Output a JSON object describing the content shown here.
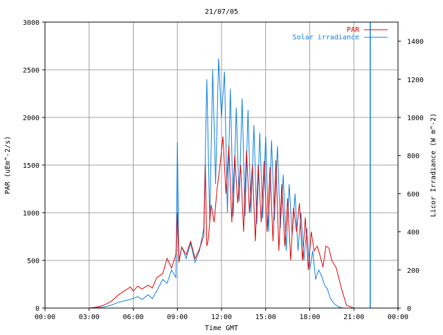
{
  "chart_data": {
    "type": "line",
    "title": "21/07/05",
    "xlabel": "Time GMT",
    "ylabel_left": "PAR (uEm^-2/s)",
    "ylabel_right": "Licor Irradiance (W m^-2)",
    "xlim_hours": [
      0,
      24
    ],
    "x_ticks": [
      "00:00",
      "03:00",
      "06:00",
      "09:00",
      "12:00",
      "15:00",
      "18:00",
      "21:00",
      "00:00"
    ],
    "ylim_left": [
      0,
      3000
    ],
    "y_ticks_left": [
      "0",
      "500",
      "1000",
      "1500",
      "2000",
      "2500",
      "3000"
    ],
    "ylim_right": [
      0,
      1500
    ],
    "y_ticks_right": [
      "0",
      "200",
      "400",
      "600",
      "800",
      "1000",
      "1200",
      "1400"
    ],
    "grid": true,
    "legend_position": "top-right",
    "series": [
      {
        "name": "PAR",
        "axis": "left",
        "color": "#e00000",
        "x": [
          0,
          3,
          3.5,
          4,
          4.5,
          5,
          5.5,
          5.8,
          6,
          6.3,
          6.6,
          7,
          7.3,
          7.6,
          8,
          8.3,
          8.6,
          8.9,
          9.0,
          9.1,
          9.3,
          9.6,
          9.9,
          10.2,
          10.5,
          10.8,
          10.9,
          11.0,
          11.1,
          11.3,
          11.5,
          11.7,
          11.9,
          12.1,
          12.3,
          12.5,
          12.7,
          12.9,
          13.1,
          13.3,
          13.5,
          13.7,
          13.9,
          14.1,
          14.3,
          14.5,
          14.7,
          14.9,
          15.1,
          15.3,
          15.5,
          15.7,
          15.9,
          16.1,
          16.3,
          16.5,
          16.7,
          16.9,
          17.1,
          17.3,
          17.5,
          17.7,
          17.9,
          18.1,
          18.3,
          18.5,
          18.7,
          18.9,
          19.1,
          19.3,
          19.5,
          19.8,
          20.0,
          20.2,
          20.5,
          21,
          24
        ],
        "y": [
          0,
          0,
          10,
          30,
          70,
          140,
          190,
          220,
          180,
          230,
          200,
          240,
          210,
          320,
          360,
          520,
          420,
          560,
          1000,
          480,
          640,
          560,
          700,
          520,
          620,
          760,
          1500,
          650,
          720,
          1080,
          900,
          1250,
          1500,
          1800,
          1200,
          1700,
          900,
          1600,
          1100,
          1500,
          800,
          1650,
          1000,
          1500,
          700,
          1500,
          900,
          1540,
          800,
          1480,
          700,
          1550,
          600,
          1300,
          650,
          1150,
          500,
          1050,
          800,
          1100,
          500,
          950,
          400,
          800,
          600,
          650,
          550,
          430,
          650,
          630,
          500,
          420,
          300,
          180,
          30,
          0,
          0
        ]
      },
      {
        "name": "Solar irradiance",
        "axis": "right",
        "color": "#0a7fe0",
        "x": [
          0,
          3,
          4,
          4.5,
          5,
          5.5,
          6,
          6.3,
          6.6,
          7,
          7.3,
          7.6,
          8,
          8.3,
          8.6,
          8.9,
          9.0,
          9.1,
          9.3,
          9.6,
          9.9,
          10.2,
          10.5,
          10.8,
          11.0,
          11.2,
          11.4,
          11.6,
          11.8,
          12.0,
          12.2,
          12.4,
          12.6,
          12.8,
          13.0,
          13.2,
          13.4,
          13.6,
          13.8,
          14.0,
          14.2,
          14.4,
          14.6,
          14.8,
          15.0,
          15.2,
          15.4,
          15.6,
          15.8,
          16.0,
          16.2,
          16.4,
          16.6,
          16.8,
          17.0,
          17.2,
          17.4,
          17.6,
          17.8,
          18.0,
          18.2,
          18.4,
          18.6,
          18.8,
          19.0,
          19.2,
          19.4,
          19.7,
          20.0,
          20.3,
          20.6,
          21,
          22.1,
          22.1,
          22.12,
          22.12,
          24
        ],
        "y": [
          0,
          0,
          5,
          15,
          30,
          40,
          50,
          60,
          45,
          70,
          50,
          90,
          150,
          130,
          200,
          160,
          870,
          250,
          320,
          260,
          340,
          240,
          300,
          420,
          1200,
          450,
          1250,
          650,
          1310,
          1000,
          1240,
          500,
          1150,
          480,
          1050,
          560,
          1100,
          480,
          1040,
          500,
          960,
          440,
          920,
          470,
          900,
          400,
          880,
          460,
          850,
          420,
          700,
          300,
          650,
          380,
          600,
          300,
          500,
          250,
          420,
          200,
          300,
          150,
          200,
          170,
          120,
          100,
          50,
          20,
          5,
          0,
          0,
          0,
          0,
          1500,
          1500,
          0,
          0
        ]
      }
    ]
  }
}
